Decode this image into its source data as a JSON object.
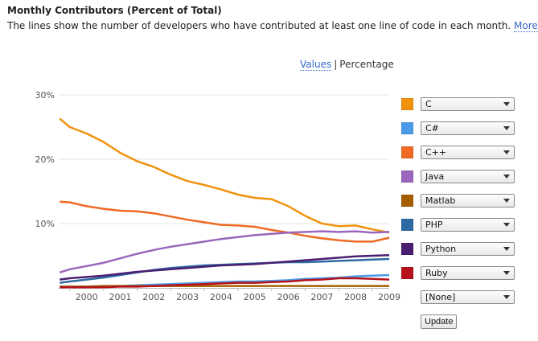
{
  "header": {
    "title": "Monthly Contributors (Percent of Total)",
    "subtitle": "The lines show the number of developers who have contributed at least one line of code in each month.",
    "more_link": "More"
  },
  "toggle": {
    "values_label": "Values",
    "separator": "|",
    "percentage_label": "Percentage"
  },
  "legend": [
    {
      "label": "C",
      "color": "#f0920e"
    },
    {
      "label": "C#",
      "color": "#4a9be8"
    },
    {
      "label": "C++",
      "color": "#ef6a23"
    },
    {
      "label": "Java",
      "color": "#9b66bd"
    },
    {
      "label": "Matlab",
      "color": "#a65e00"
    },
    {
      "label": "PHP",
      "color": "#2d6aa3"
    },
    {
      "label": "Python",
      "color": "#4a1f72"
    },
    {
      "label": "Ruby",
      "color": "#b5121b"
    }
  ],
  "none_select": "[None]",
  "update_button": "Update",
  "chart_data": {
    "type": "line",
    "y_ticks": [
      "30%",
      "20%",
      "10%"
    ],
    "ylim": [
      0,
      30
    ],
    "x_ticks": [
      "2000",
      "2001",
      "2002",
      "2003",
      "2004",
      "2005",
      "2006",
      "2007",
      "2008",
      "2009"
    ],
    "xlim": [
      1999.67,
      2009.5
    ],
    "grid": "horizontal",
    "x": [
      1999.7,
      2000.0,
      2000.5,
      2001.0,
      2001.5,
      2002.0,
      2002.5,
      2003.0,
      2003.5,
      2004.0,
      2004.5,
      2005.0,
      2005.5,
      2006.0,
      2006.5,
      2007.0,
      2007.5,
      2008.0,
      2008.5,
      2009.0,
      2009.5
    ],
    "series": [
      {
        "name": "C",
        "color": "#f0920e",
        "values": [
          26.3,
          25.0,
          24.0,
          22.7,
          21.0,
          19.7,
          18.8,
          17.6,
          16.6,
          16.0,
          15.3,
          14.5,
          14.0,
          13.8,
          12.7,
          11.2,
          10.0,
          9.6,
          9.7,
          9.1,
          8.6
        ]
      },
      {
        "name": "C#",
        "color": "#4a9be8",
        "values": [
          0.2,
          0.2,
          0.2,
          0.3,
          0.3,
          0.4,
          0.5,
          0.6,
          0.7,
          0.8,
          0.9,
          1.0,
          1.0,
          1.1,
          1.2,
          1.4,
          1.5,
          1.6,
          1.8,
          1.9,
          2.0
        ]
      },
      {
        "name": "C++",
        "color": "#ef6a23",
        "values": [
          13.4,
          13.3,
          12.7,
          12.3,
          12.0,
          11.9,
          11.6,
          11.1,
          10.6,
          10.2,
          9.8,
          9.7,
          9.5,
          9.0,
          8.6,
          8.1,
          7.7,
          7.4,
          7.2,
          7.2,
          7.8
        ]
      },
      {
        "name": "Java",
        "color": "#9b66bd",
        "values": [
          2.4,
          2.9,
          3.4,
          3.9,
          4.6,
          5.3,
          5.9,
          6.4,
          6.8,
          7.2,
          7.6,
          7.9,
          8.2,
          8.4,
          8.6,
          8.7,
          8.8,
          8.7,
          8.8,
          8.6,
          8.7
        ]
      },
      {
        "name": "Matlab",
        "color": "#a65e00",
        "values": [
          0.2,
          0.2,
          0.2,
          0.3,
          0.3,
          0.3,
          0.3,
          0.3,
          0.3,
          0.3,
          0.3,
          0.3,
          0.3,
          0.3,
          0.3,
          0.3,
          0.3,
          0.3,
          0.3,
          0.3,
          0.3
        ]
      },
      {
        "name": "PHP",
        "color": "#2d6aa3",
        "values": [
          0.8,
          1.0,
          1.3,
          1.6,
          2.0,
          2.4,
          2.8,
          3.1,
          3.3,
          3.5,
          3.6,
          3.7,
          3.8,
          3.9,
          4.0,
          4.0,
          4.1,
          4.2,
          4.3,
          4.4,
          4.5
        ]
      },
      {
        "name": "Python",
        "color": "#4a1f72",
        "values": [
          1.3,
          1.5,
          1.7,
          1.9,
          2.2,
          2.5,
          2.7,
          2.9,
          3.1,
          3.3,
          3.5,
          3.6,
          3.7,
          3.9,
          4.1,
          4.3,
          4.5,
          4.7,
          4.9,
          5.0,
          5.1
        ]
      },
      {
        "name": "Ruby",
        "color": "#b5121b",
        "values": [
          0.1,
          0.1,
          0.1,
          0.1,
          0.2,
          0.2,
          0.3,
          0.4,
          0.5,
          0.6,
          0.7,
          0.8,
          0.8,
          0.9,
          1.0,
          1.2,
          1.3,
          1.5,
          1.5,
          1.4,
          1.3
        ]
      }
    ]
  }
}
